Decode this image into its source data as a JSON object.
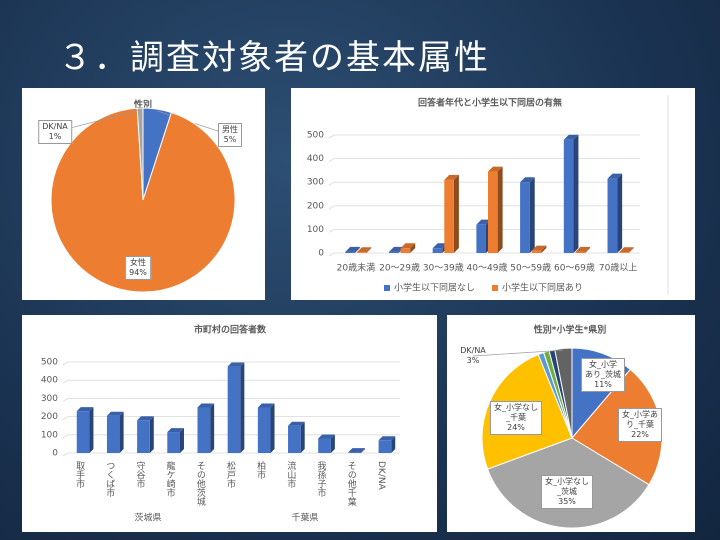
{
  "title": "３．調査対象者の基本属性",
  "chart_data": [
    {
      "type": "pie",
      "title": "性別",
      "categories": [
        "男性",
        "女性",
        "DK/NA"
      ],
      "values": [
        5,
        94,
        1
      ],
      "value_labels": [
        "5%",
        "94%",
        "1%"
      ],
      "colors": [
        "#4472c4",
        "#ed7d31",
        "#a5a5a5"
      ]
    },
    {
      "type": "bar",
      "title": "回答者年代と小学生以下同居の有無",
      "categories": [
        "20歳未満",
        "20～29歳",
        "30～39歳",
        "40～49歳",
        "50～59歳",
        "60～69歳",
        "70歳以上"
      ],
      "series": [
        {
          "name": "小学生以下同居なし",
          "color": "#4472c4",
          "values": [
            5,
            5,
            20,
            120,
            300,
            480,
            315
          ]
        },
        {
          "name": "小学生以下同居あり",
          "color": "#ed7d31",
          "values": [
            3,
            20,
            310,
            345,
            10,
            5,
            3
          ]
        }
      ],
      "ylim": [
        0,
        500
      ],
      "yticks": [
        0,
        100,
        200,
        300,
        400,
        500
      ],
      "grid": true,
      "legend": "bottom"
    },
    {
      "type": "bar",
      "title": "市町村の回答者数",
      "categories": [
        "取手市",
        "つくば市",
        "守谷市",
        "龍ケ崎市",
        "その他茨城",
        "松戸市",
        "柏市",
        "流山市",
        "我孫子市",
        "その他千葉",
        "DK/NA"
      ],
      "series": [
        {
          "color": "#4472c4",
          "values": [
            230,
            205,
            180,
            115,
            250,
            475,
            250,
            150,
            80,
            5,
            70
          ]
        }
      ],
      "groups": [
        "茨城県",
        "千葉県"
      ],
      "ylim": [
        0,
        500
      ],
      "yticks": [
        0,
        100,
        200,
        300,
        400,
        500
      ],
      "grid": true
    },
    {
      "type": "pie",
      "title": "性別*小学生*県別",
      "categories": [
        "女_小学\nあり_茨城",
        "女_小学あ\nり_千葉",
        "女_小学なし\n_茨城",
        "女_小学なし\n_千葉",
        null,
        null,
        null,
        "DK/NA"
      ],
      "values": [
        11,
        22,
        35,
        24,
        1,
        1,
        1,
        3
      ],
      "value_labels": [
        "11%",
        "22%",
        "35%",
        "24%",
        null,
        null,
        null,
        "3%"
      ],
      "colors": [
        "#4472c4",
        "#ed7d31",
        "#a5a5a5",
        "#ffc000",
        "#5b9bd5",
        "#70ad47",
        "#264478",
        "#636363"
      ]
    }
  ]
}
